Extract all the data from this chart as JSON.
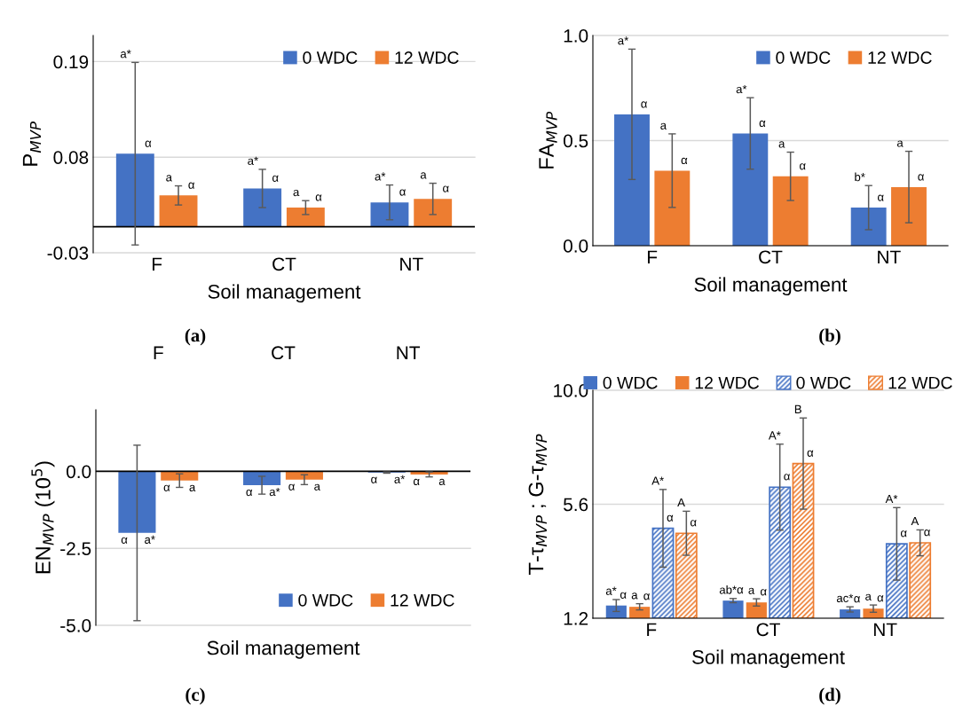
{
  "chart_data": [
    {
      "type": "bar",
      "ylabel": "P$_{MVP}$",
      "xlabel": "Soil management",
      "categories": [
        "F",
        "CT",
        "NT"
      ],
      "ylim": [
        -0.03,
        0.22
      ],
      "yticks": [
        -0.03,
        0.08,
        0.19
      ],
      "grid": "y",
      "legend": "top right",
      "annotations": [
        "(a)"
      ],
      "series": [
        {
          "name": "0 WDC",
          "color": "#4472c4",
          "values": [
            0.084,
            0.044,
            0.028
          ],
          "errors": [
            0.105,
            0.022,
            0.02
          ],
          "value_labels": [
            [
              "a*",
              "α"
            ],
            [
              "a*",
              "α"
            ],
            [
              "a*",
              "α"
            ]
          ]
        },
        {
          "name": "12 WDC",
          "color": "#ed7d31",
          "values": [
            0.036,
            0.022,
            0.032
          ],
          "errors": [
            0.011,
            0.008,
            0.018
          ],
          "value_labels": [
            [
              "a",
              "α"
            ],
            [
              "a",
              "α"
            ],
            [
              "a",
              "α"
            ]
          ]
        }
      ]
    },
    {
      "type": "bar",
      "ylabel": "FA$_{MVP}$",
      "xlabel": "Soil management",
      "categories": [
        "F",
        "CT",
        "NT"
      ],
      "ylim": [
        0.0,
        1.0
      ],
      "yticks": [
        {
          "value": 0.0,
          "label": "0.0"
        },
        0.5,
        {
          "value": 1.0,
          "label": "1.0"
        }
      ],
      "grid": "y",
      "legend": "top right",
      "annotations": [
        "(b)"
      ],
      "series": [
        {
          "name": "0 WDC",
          "color": "#4472c4",
          "values": [
            0.625,
            0.534,
            0.181
          ],
          "errors": [
            0.31,
            0.17,
            0.105
          ],
          "value_labels": [
            [
              "a*",
              "α"
            ],
            [
              "a*",
              "α"
            ],
            [
              "b*",
              "α"
            ]
          ]
        },
        {
          "name": "12 WDC",
          "color": "#ed7d31",
          "values": [
            0.357,
            0.33,
            0.279
          ],
          "errors": [
            0.175,
            0.115,
            0.17
          ],
          "value_labels": [
            [
              "a",
              "α"
            ],
            [
              "a",
              "α"
            ],
            [
              "a",
              "α"
            ]
          ]
        }
      ]
    },
    {
      "type": "bar",
      "ylabel": "EN$_{MVP}$ (10$^{5}$)",
      "xlabel": "Soil management",
      "categories": [
        "F",
        "CT",
        "NT"
      ],
      "ylim": [
        -5.0,
        2.0
      ],
      "yticks": [
        {
          "value": -5.0,
          "label": "-5.0"
        },
        -2.5,
        {
          "value": 0.0,
          "label": "0.0"
        }
      ],
      "grid": "y",
      "legend": "bottom right",
      "annotations": [
        "(c)"
      ],
      "series": [
        {
          "name": "0 WDC",
          "color": "#4472c4",
          "values": [
            -2.0,
            -0.45,
            -0.04
          ],
          "errors": [
            2.85,
            0.29,
            0.02
          ],
          "value_labels": [
            [
              "α",
              "a*"
            ],
            [
              "α",
              "a*"
            ],
            [
              "α",
              "a*"
            ]
          ]
        },
        {
          "name": "12 WDC",
          "color": "#ed7d31",
          "values": [
            -0.3,
            -0.27,
            -0.1
          ],
          "errors": [
            0.22,
            0.16,
            0.08
          ],
          "value_labels": [
            [
              "α",
              "a"
            ],
            [
              "α",
              "a"
            ],
            [
              "α",
              "a"
            ]
          ]
        }
      ]
    },
    {
      "type": "bar",
      "ylabel": "T-τ$_{MVP}$ ; G-τ$_{MVP}$",
      "xlabel": "Soil management",
      "categories": [
        "F",
        "CT",
        "NT"
      ],
      "ylim": [
        1.2,
        10.0
      ],
      "yticks": [
        1.2,
        5.6,
        {
          "value": 10.0,
          "label": "10.0"
        }
      ],
      "grid": "y",
      "legend": "top",
      "annotations": [
        "(d)"
      ],
      "series": [
        {
          "name": "0 WDC",
          "color": "#4472c4",
          "values": [
            1.69,
            1.88,
            1.54
          ],
          "errors": [
            0.23,
            0.08,
            0.1
          ],
          "value_labels": [
            [
              "a*",
              "α"
            ],
            [
              "ab*",
              "α"
            ],
            [
              "ac*",
              "α"
            ]
          ]
        },
        {
          "name": "12 WDC",
          "color": "#ed7d31",
          "values": [
            1.64,
            1.81,
            1.57
          ],
          "errors": [
            0.12,
            0.14,
            0.14
          ],
          "value_labels": [
            [
              "a",
              "α"
            ],
            [
              "a",
              "α"
            ],
            [
              "a",
              "α"
            ]
          ]
        },
        {
          "name": "0 WDC",
          "color": "#4472c4",
          "values": [
            4.67,
            6.26,
            4.07
          ],
          "errors": [
            1.5,
            1.66,
            1.4
          ],
          "value_labels": [
            [
              "A*",
              "α"
            ],
            [
              "A*",
              "α"
            ],
            [
              "A*",
              "α"
            ]
          ]
        },
        {
          "name": "12 WDC",
          "color": "#ed7d31",
          "values": [
            4.48,
            7.17,
            4.11
          ],
          "errors": [
            0.85,
            1.76,
            0.5
          ],
          "value_labels": [
            [
              "A",
              "α"
            ],
            [
              "B",
              "α"
            ],
            [
              "A",
              "α"
            ]
          ]
        }
      ]
    }
  ]
}
